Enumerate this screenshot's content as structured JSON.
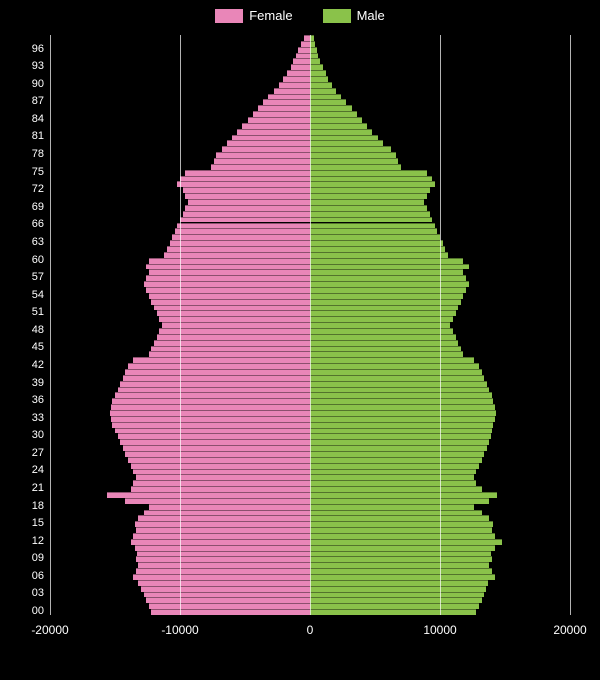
{
  "chart": {
    "type": "population-pyramid",
    "background_color": "#000000",
    "grid_color": "#ffffff",
    "text_color": "#ffffff",
    "legend": {
      "female": {
        "label": "Female",
        "color": "#e986b8"
      },
      "male": {
        "label": "Male",
        "color": "#8ac24a"
      }
    },
    "xlim": [
      -20000,
      20000
    ],
    "x_ticks": [
      -20000,
      -10000,
      0,
      10000,
      20000
    ],
    "x_labels": [
      "-20000",
      "-10000",
      "0",
      "10000",
      "20000"
    ],
    "y_tick_step": 3,
    "y_labels": [
      "00",
      "03",
      "06",
      "09",
      "12",
      "15",
      "18",
      "21",
      "24",
      "27",
      "30",
      "33",
      "36",
      "39",
      "42",
      "45",
      "48",
      "51",
      "54",
      "57",
      "60",
      "63",
      "66",
      "69",
      "72",
      "75",
      "78",
      "81",
      "84",
      "87",
      "90",
      "93",
      "96"
    ],
    "label_fontsize": 11,
    "data": [
      {
        "age": 0,
        "f": 12200,
        "m": 12800
      },
      {
        "age": 1,
        "f": 12400,
        "m": 13000
      },
      {
        "age": 2,
        "f": 12600,
        "m": 13200
      },
      {
        "age": 3,
        "f": 12800,
        "m": 13400
      },
      {
        "age": 4,
        "f": 13000,
        "m": 13500
      },
      {
        "age": 5,
        "f": 13200,
        "m": 13700
      },
      {
        "age": 6,
        "f": 13600,
        "m": 14200
      },
      {
        "age": 7,
        "f": 13400,
        "m": 14000
      },
      {
        "age": 8,
        "f": 13200,
        "m": 13800
      },
      {
        "age": 9,
        "f": 13400,
        "m": 14000
      },
      {
        "age": 10,
        "f": 13300,
        "m": 13900
      },
      {
        "age": 11,
        "f": 13500,
        "m": 14200
      },
      {
        "age": 12,
        "f": 13800,
        "m": 14800
      },
      {
        "age": 13,
        "f": 13600,
        "m": 14200
      },
      {
        "age": 14,
        "f": 13400,
        "m": 14000
      },
      {
        "age": 15,
        "f": 13500,
        "m": 14100
      },
      {
        "age": 16,
        "f": 13200,
        "m": 13800
      },
      {
        "age": 17,
        "f": 12800,
        "m": 13200
      },
      {
        "age": 18,
        "f": 12400,
        "m": 12600
      },
      {
        "age": 19,
        "f": 14200,
        "m": 13800
      },
      {
        "age": 20,
        "f": 15600,
        "m": 14400
      },
      {
        "age": 21,
        "f": 13800,
        "m": 13200
      },
      {
        "age": 22,
        "f": 13600,
        "m": 12800
      },
      {
        "age": 23,
        "f": 13400,
        "m": 12600
      },
      {
        "age": 24,
        "f": 13600,
        "m": 12800
      },
      {
        "age": 25,
        "f": 13800,
        "m": 13000
      },
      {
        "age": 26,
        "f": 14000,
        "m": 13200
      },
      {
        "age": 27,
        "f": 14200,
        "m": 13400
      },
      {
        "age": 28,
        "f": 14400,
        "m": 13600
      },
      {
        "age": 29,
        "f": 14600,
        "m": 13800
      },
      {
        "age": 30,
        "f": 14800,
        "m": 13900
      },
      {
        "age": 31,
        "f": 15000,
        "m": 14000
      },
      {
        "age": 32,
        "f": 15200,
        "m": 14100
      },
      {
        "age": 33,
        "f": 15300,
        "m": 14200
      },
      {
        "age": 34,
        "f": 15400,
        "m": 14300
      },
      {
        "age": 35,
        "f": 15300,
        "m": 14200
      },
      {
        "age": 36,
        "f": 15200,
        "m": 14100
      },
      {
        "age": 37,
        "f": 15000,
        "m": 14000
      },
      {
        "age": 38,
        "f": 14800,
        "m": 13800
      },
      {
        "age": 39,
        "f": 14600,
        "m": 13600
      },
      {
        "age": 40,
        "f": 14400,
        "m": 13400
      },
      {
        "age": 41,
        "f": 14200,
        "m": 13200
      },
      {
        "age": 42,
        "f": 14000,
        "m": 13000
      },
      {
        "age": 43,
        "f": 13600,
        "m": 12600
      },
      {
        "age": 44,
        "f": 12400,
        "m": 11800
      },
      {
        "age": 45,
        "f": 12200,
        "m": 11600
      },
      {
        "age": 46,
        "f": 12000,
        "m": 11400
      },
      {
        "age": 47,
        "f": 11800,
        "m": 11200
      },
      {
        "age": 48,
        "f": 11600,
        "m": 11000
      },
      {
        "age": 49,
        "f": 11400,
        "m": 10800
      },
      {
        "age": 50,
        "f": 11600,
        "m": 11000
      },
      {
        "age": 51,
        "f": 11800,
        "m": 11200
      },
      {
        "age": 52,
        "f": 12000,
        "m": 11400
      },
      {
        "age": 53,
        "f": 12200,
        "m": 11600
      },
      {
        "age": 54,
        "f": 12400,
        "m": 11800
      },
      {
        "age": 55,
        "f": 12600,
        "m": 12000
      },
      {
        "age": 56,
        "f": 12800,
        "m": 12200
      },
      {
        "age": 57,
        "f": 12600,
        "m": 12000
      },
      {
        "age": 58,
        "f": 12400,
        "m": 11800
      },
      {
        "age": 59,
        "f": 12600,
        "m": 12200
      },
      {
        "age": 60,
        "f": 12400,
        "m": 11800
      },
      {
        "age": 61,
        "f": 11200,
        "m": 10600
      },
      {
        "age": 62,
        "f": 11000,
        "m": 10400
      },
      {
        "age": 63,
        "f": 10800,
        "m": 10200
      },
      {
        "age": 64,
        "f": 10600,
        "m": 10000
      },
      {
        "age": 65,
        "f": 10400,
        "m": 9800
      },
      {
        "age": 66,
        "f": 10200,
        "m": 9600
      },
      {
        "age": 67,
        "f": 10000,
        "m": 9400
      },
      {
        "age": 68,
        "f": 9800,
        "m": 9200
      },
      {
        "age": 69,
        "f": 9600,
        "m": 9000
      },
      {
        "age": 70,
        "f": 9400,
        "m": 8800
      },
      {
        "age": 71,
        "f": 9600,
        "m": 9000
      },
      {
        "age": 72,
        "f": 9800,
        "m": 9200
      },
      {
        "age": 73,
        "f": 10200,
        "m": 9600
      },
      {
        "age": 74,
        "f": 10000,
        "m": 9400
      },
      {
        "age": 75,
        "f": 9600,
        "m": 9000
      },
      {
        "age": 76,
        "f": 7600,
        "m": 7000
      },
      {
        "age": 77,
        "f": 7400,
        "m": 6800
      },
      {
        "age": 78,
        "f": 7200,
        "m": 6600
      },
      {
        "age": 79,
        "f": 6800,
        "m": 6200
      },
      {
        "age": 80,
        "f": 6400,
        "m": 5600
      },
      {
        "age": 81,
        "f": 6000,
        "m": 5200
      },
      {
        "age": 82,
        "f": 5600,
        "m": 4800
      },
      {
        "age": 83,
        "f": 5200,
        "m": 4400
      },
      {
        "age": 84,
        "f": 4800,
        "m": 4000
      },
      {
        "age": 85,
        "f": 4400,
        "m": 3600
      },
      {
        "age": 86,
        "f": 4000,
        "m": 3200
      },
      {
        "age": 87,
        "f": 3600,
        "m": 2800
      },
      {
        "age": 88,
        "f": 3200,
        "m": 2400
      },
      {
        "age": 89,
        "f": 2800,
        "m": 2000
      },
      {
        "age": 90,
        "f": 2400,
        "m": 1700
      },
      {
        "age": 91,
        "f": 2100,
        "m": 1400
      },
      {
        "age": 92,
        "f": 1800,
        "m": 1200
      },
      {
        "age": 93,
        "f": 1500,
        "m": 1000
      },
      {
        "age": 94,
        "f": 1300,
        "m": 800
      },
      {
        "age": 95,
        "f": 1100,
        "m": 600
      },
      {
        "age": 96,
        "f": 900,
        "m": 500
      },
      {
        "age": 97,
        "f": 700,
        "m": 400
      },
      {
        "age": 98,
        "f": 500,
        "m": 300
      }
    ]
  }
}
